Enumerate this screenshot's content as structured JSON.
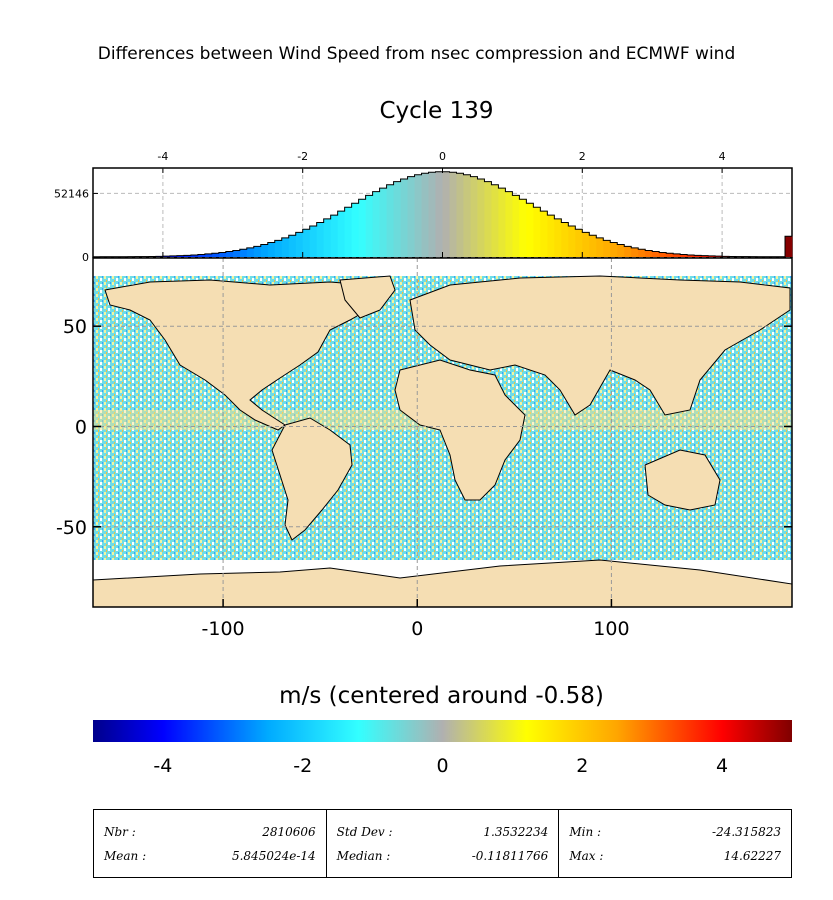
{
  "suptitle": "Differences between Wind Speed from nsec compression and ECMWF wind",
  "chart_data": [
    {
      "type": "histogram",
      "title": "Cycle 139",
      "x_ticks": [
        -4,
        -2,
        0,
        2,
        4
      ],
      "y_ticks": [
        0,
        52146
      ],
      "xlim": [
        -5,
        5
      ],
      "ylim": [
        0,
        73000
      ],
      "bin_width": 0.1,
      "peak_x": 0,
      "peak_y": 70000,
      "grid": true
    },
    {
      "type": "heatmap",
      "subtype": "map",
      "x_ticks": [
        -100,
        0,
        100
      ],
      "y_ticks": [
        50,
        0,
        -50
      ],
      "xlim": [
        -167,
        193
      ],
      "ylim": [
        -90,
        84
      ]
    },
    {
      "type": "colorbar",
      "label": "m/s (centered around -0.58)",
      "ticks": [
        -4,
        -2,
        0,
        2,
        4
      ],
      "range": [
        -5,
        5
      ],
      "colors": [
        "#00008b",
        "#0044ff",
        "#00aaff",
        "#33ffff",
        "#7ff0c8",
        "#b0b0b0",
        "#e8e870",
        "#ffff00",
        "#ffb000",
        "#ff5000",
        "#ff0000",
        "#800000"
      ]
    }
  ],
  "stats": [
    [
      {
        "label": "Nbr :",
        "value": "2810606"
      },
      {
        "label": "Mean :",
        "value": "5.845024e-14"
      }
    ],
    [
      {
        "label": "Std Dev :",
        "value": "1.3532234"
      },
      {
        "label": "Median :",
        "value": "-0.11811766"
      }
    ],
    [
      {
        "label": "Min :",
        "value": "-24.315823"
      },
      {
        "label": "Max :",
        "value": "14.62227"
      }
    ]
  ],
  "colors": {
    "land": "#f5deb3",
    "ocean_base": "#5fd8e0"
  }
}
